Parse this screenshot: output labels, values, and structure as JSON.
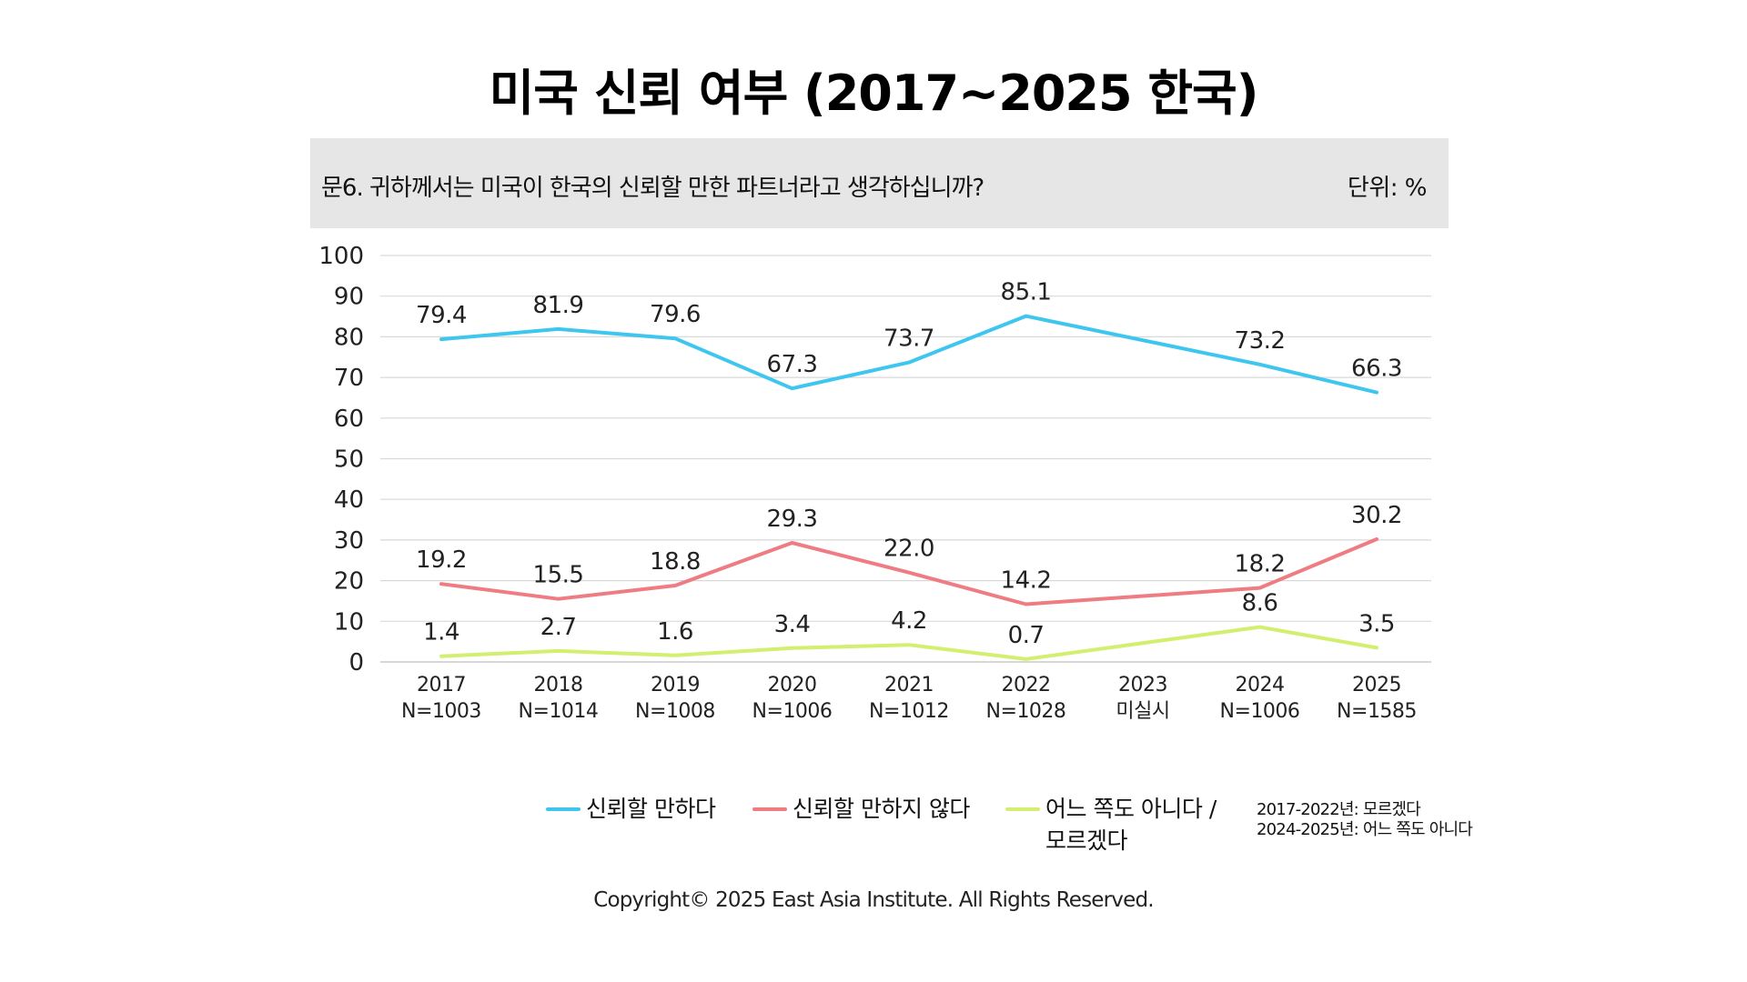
{
  "title": "미국 신뢰 여부 (2017~2025 한국)",
  "question": "문6. 귀하께서는 미국이 한국의 신뢰할 만한 파트너라고 생각하십니까?",
  "unit": "단위: %",
  "legend_note": [
    "2017-2022년: 모르겠다",
    "2024-2025년: 어느 쪽도 아니다"
  ],
  "footer": "Copyright© 2025 East Asia Institute. All Rights Reserved.",
  "chart_data": {
    "type": "line",
    "categories": [
      {
        "year": "2017",
        "n": "N=1003"
      },
      {
        "year": "2018",
        "n": "N=1014"
      },
      {
        "year": "2019",
        "n": "N=1008"
      },
      {
        "year": "2020",
        "n": "N=1006"
      },
      {
        "year": "2021",
        "n": "N=1012"
      },
      {
        "year": "2022",
        "n": "N=1028"
      },
      {
        "year": "2023",
        "n": "미실시"
      },
      {
        "year": "2024",
        "n": "N=1006"
      },
      {
        "year": "2025",
        "n": "N=1585"
      }
    ],
    "ylim": [
      0,
      100
    ],
    "yticks": [
      "0",
      "10",
      "20",
      "30",
      "40",
      "50",
      "60",
      "70",
      "80",
      "90",
      "100"
    ],
    "grid": true,
    "legend_position": "bottom",
    "series": [
      {
        "name": "신뢰할 만하다",
        "color": "#3ec6ef",
        "values": [
          79.4,
          81.9,
          79.6,
          67.3,
          73.7,
          85.1,
          null,
          73.2,
          66.3
        ],
        "labels": [
          "79.4",
          "81.9",
          "79.6",
          "67.3",
          "73.7",
          "85.1",
          "",
          "73.2",
          "66.3"
        ]
      },
      {
        "name": "신뢰할 만하지 않다",
        "color": "#ef7b83",
        "values": [
          19.2,
          15.5,
          18.8,
          29.3,
          22.0,
          14.2,
          null,
          18.2,
          30.2
        ],
        "labels": [
          "19.2",
          "15.5",
          "18.8",
          "29.3",
          "22.0",
          "14.2",
          "",
          "18.2",
          "30.2"
        ]
      },
      {
        "name": "어느 쪽도 아니다 / 모르겠다",
        "color": "#d2ef6f",
        "values": [
          1.4,
          2.7,
          1.6,
          3.4,
          4.2,
          0.7,
          null,
          8.6,
          3.5
        ],
        "labels": [
          "1.4",
          "2.7",
          "1.6",
          "3.4",
          "4.2",
          "0.7",
          "",
          "8.6",
          "3.5"
        ]
      }
    ]
  }
}
